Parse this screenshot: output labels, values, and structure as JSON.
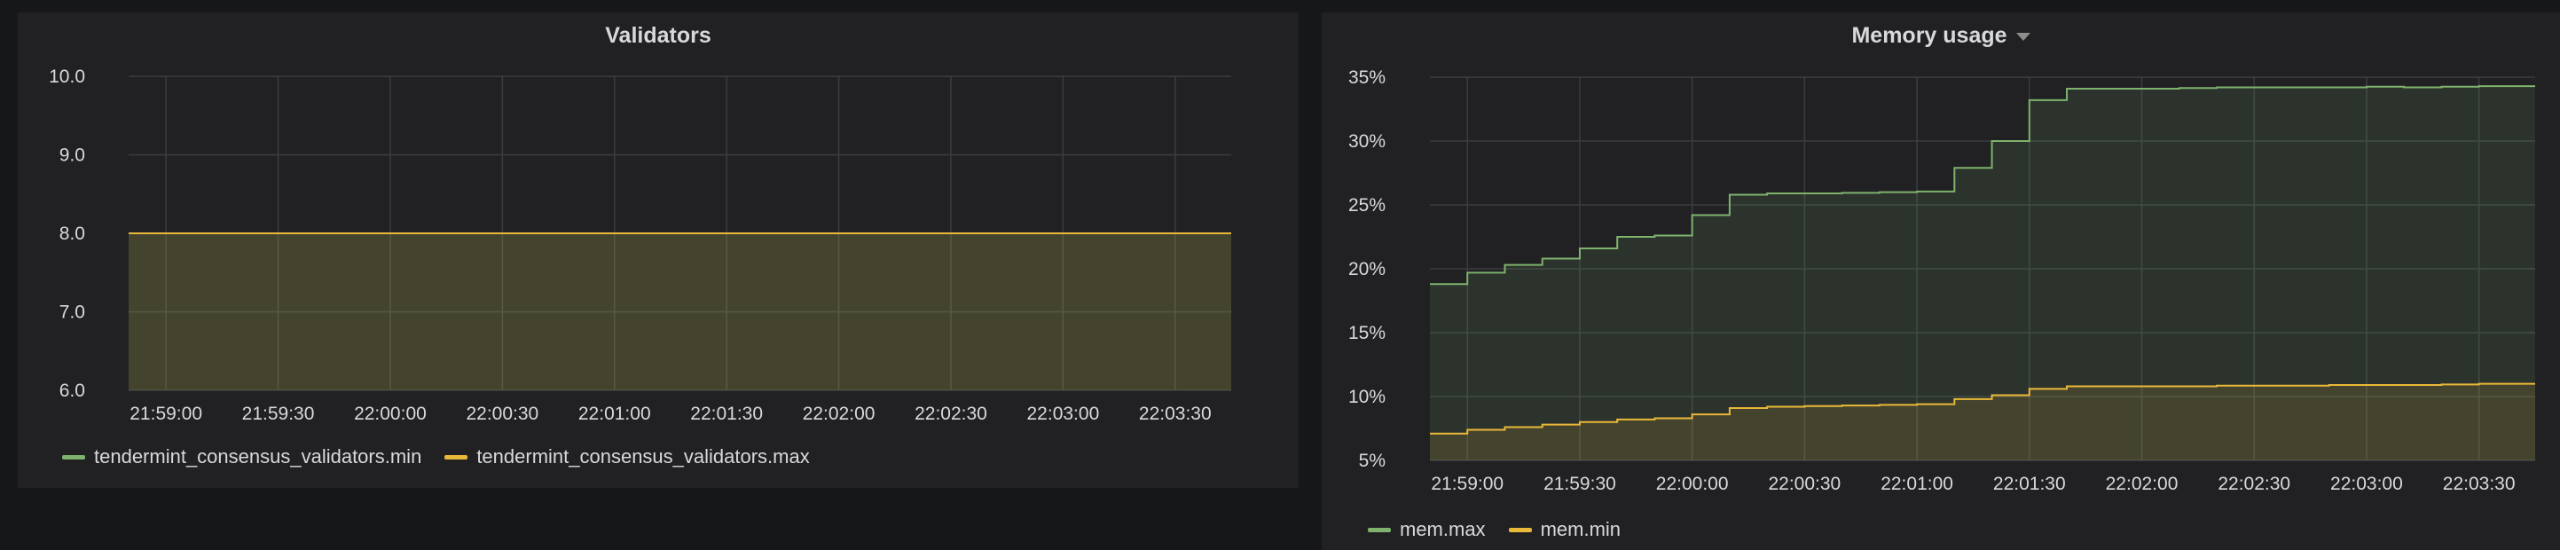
{
  "chart_data": [
    {
      "type": "area",
      "title": "Validators",
      "yticks": [
        "10.0",
        "9.0",
        "8.0",
        "7.0",
        "6.0"
      ],
      "ylim": [
        6,
        10
      ],
      "xticks": [
        "21:59:00",
        "21:59:30",
        "22:00:00",
        "22:00:30",
        "22:01:00",
        "22:01:30",
        "22:02:00",
        "22:02:30",
        "22:03:00",
        "22:03:30"
      ],
      "grid": true,
      "legend": "bottom-left",
      "series": [
        {
          "name": "tendermint_consensus_validators.min",
          "color": "#7eb26d",
          "x": [
            "21:58:50",
            "22:03:45"
          ],
          "values": [
            8,
            8
          ]
        },
        {
          "name": "tendermint_consensus_validators.max",
          "color": "#eab839",
          "x": [
            "21:58:50",
            "22:03:45"
          ],
          "values": [
            8,
            8
          ]
        }
      ]
    },
    {
      "type": "area",
      "title": "Memory usage",
      "yticks": [
        "35%",
        "30%",
        "25%",
        "20%",
        "15%",
        "10%",
        "5%"
      ],
      "ylim": [
        5,
        35
      ],
      "xticks": [
        "21:59:00",
        "21:59:30",
        "22:00:00",
        "22:00:30",
        "22:01:00",
        "22:01:30",
        "22:02:00",
        "22:02:30",
        "22:03:00",
        "22:03:30"
      ],
      "grid": true,
      "legend": "bottom-left",
      "series": [
        {
          "name": "mem.max",
          "color": "#7eb26d",
          "x": [
            "21:58:50",
            "21:59:00",
            "21:59:10",
            "21:59:20",
            "21:59:30",
            "21:59:40",
            "21:59:50",
            "22:00:00",
            "22:00:10",
            "22:00:20",
            "22:00:30",
            "22:00:40",
            "22:00:50",
            "22:01:00",
            "22:01:10",
            "22:01:20",
            "22:01:30",
            "22:01:40",
            "22:01:50",
            "22:02:00",
            "22:02:10",
            "22:02:20",
            "22:02:30",
            "22:02:40",
            "22:02:50",
            "22:03:00",
            "22:03:10",
            "22:03:20",
            "22:03:30",
            "22:03:45"
          ],
          "values": [
            18.8,
            19.7,
            20.3,
            20.8,
            21.6,
            22.5,
            22.6,
            24.2,
            25.8,
            25.9,
            25.9,
            25.95,
            26.0,
            26.05,
            27.9,
            30.0,
            33.2,
            34.1,
            34.1,
            34.1,
            34.15,
            34.2,
            34.2,
            34.2,
            34.2,
            34.25,
            34.2,
            34.25,
            34.3,
            34.3
          ]
        },
        {
          "name": "mem.min",
          "color": "#eab839",
          "x": [
            "21:58:50",
            "21:59:00",
            "21:59:10",
            "21:59:20",
            "21:59:30",
            "21:59:40",
            "21:59:50",
            "22:00:00",
            "22:00:10",
            "22:00:20",
            "22:00:30",
            "22:00:40",
            "22:00:50",
            "22:01:00",
            "22:01:10",
            "22:01:20",
            "22:01:30",
            "22:01:40",
            "22:01:50",
            "22:02:00",
            "22:02:10",
            "22:02:20",
            "22:02:30",
            "22:02:40",
            "22:02:50",
            "22:03:00",
            "22:03:10",
            "22:03:20",
            "22:03:30",
            "22:03:45"
          ],
          "values": [
            7.1,
            7.4,
            7.6,
            7.8,
            8.0,
            8.2,
            8.3,
            8.6,
            9.1,
            9.2,
            9.25,
            9.3,
            9.35,
            9.4,
            9.8,
            10.1,
            10.6,
            10.8,
            10.8,
            10.8,
            10.8,
            10.85,
            10.85,
            10.85,
            10.9,
            10.9,
            10.9,
            10.95,
            11.0,
            11.0
          ]
        }
      ]
    }
  ]
}
